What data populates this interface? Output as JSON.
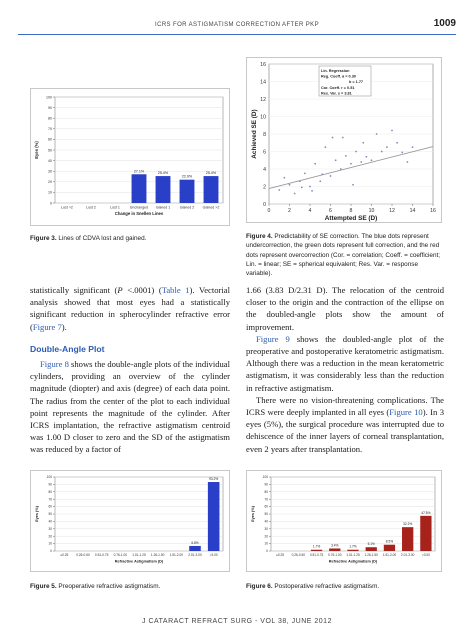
{
  "header": {
    "running_head": "ICRS FOR ASTIGMATISM CORRECTION AFTER PKP",
    "page_number": "1009"
  },
  "figure3": {
    "caption_label": "Figure 3.",
    "caption_text": "Lines of CDVA lost and gained.",
    "chart_data": {
      "type": "bar",
      "categories": [
        "Lost >2",
        "Lost 2",
        "Lost 1",
        "Unchanged",
        "Gained 1",
        "Gained 2",
        "Gained >2"
      ],
      "values": [
        0,
        0,
        0,
        27.1,
        25.4,
        22.0,
        25.4
      ],
      "value_labels": [
        "",
        "",
        "",
        "27.1%",
        "25.4%",
        "22.0%",
        "25.4%"
      ],
      "ylabel": "Eyes (%)",
      "xlabel": "Change in Snellen Lines",
      "ylim": [
        0,
        100
      ],
      "yticks": [
        "0",
        "10",
        "20",
        "30",
        "40",
        "50",
        "60",
        "70",
        "80",
        "90",
        "100"
      ],
      "bar_color": "#2a3fc8"
    }
  },
  "figure4": {
    "caption_label": "Figure 4.",
    "caption_text": "Predictability of SE correction. The blue dots represent undercorrection, the green dots represent full correction, and the red dots represent overcorrection (Cor. = correlation; Coeff. = coefficient; Lin. = linear; SE = spherical equivalent; Res. Var. = response variable).",
    "chart_data": {
      "type": "scatter",
      "xlabel": "Attempted SE (D)",
      "ylabel": "Achieved SE (D)",
      "xlim": [
        0,
        16
      ],
      "ylim": [
        0,
        16
      ],
      "xticks": [
        "0",
        "2",
        "4",
        "6",
        "8",
        "10",
        "12",
        "14",
        "16"
      ],
      "yticks": [
        "0",
        "2",
        "4",
        "6",
        "8",
        "10",
        "12",
        "14",
        "16"
      ],
      "legend_lines": [
        "Lin. Regression",
        "Reg. Coeff.  a = 0.30",
        "b = 1.77",
        "Cor. Coeff.  r = 0.51",
        "Res. Var.   s = 3.81"
      ],
      "regression": {
        "a": 0.3,
        "b": 1.77,
        "x_range": [
          0,
          16
        ]
      },
      "points": [
        {
          "x": 1.0,
          "y": 1.6
        },
        {
          "x": 1.5,
          "y": 3.0
        },
        {
          "x": 2.0,
          "y": 2.2
        },
        {
          "x": 2.5,
          "y": 1.2
        },
        {
          "x": 3.0,
          "y": 2.6
        },
        {
          "x": 3.2,
          "y": 1.9
        },
        {
          "x": 3.5,
          "y": 3.5
        },
        {
          "x": 4.0,
          "y": 2.0
        },
        {
          "x": 4.2,
          "y": 1.5
        },
        {
          "x": 4.5,
          "y": 4.6
        },
        {
          "x": 5.0,
          "y": 2.6
        },
        {
          "x": 5.2,
          "y": 3.4
        },
        {
          "x": 5.5,
          "y": 6.5
        },
        {
          "x": 6.0,
          "y": 3.2
        },
        {
          "x": 6.2,
          "y": 7.6
        },
        {
          "x": 6.5,
          "y": 5.0
        },
        {
          "x": 7.0,
          "y": 4.0
        },
        {
          "x": 7.2,
          "y": 7.6
        },
        {
          "x": 7.5,
          "y": 5.5
        },
        {
          "x": 8.0,
          "y": 4.6
        },
        {
          "x": 8.2,
          "y": 2.2
        },
        {
          "x": 8.5,
          "y": 6.0
        },
        {
          "x": 9.0,
          "y": 4.8
        },
        {
          "x": 9.2,
          "y": 7.0
        },
        {
          "x": 9.5,
          "y": 5.4
        },
        {
          "x": 10.0,
          "y": 5.0
        },
        {
          "x": 10.5,
          "y": 8.0
        },
        {
          "x": 11.0,
          "y": 6.0
        },
        {
          "x": 11.5,
          "y": 6.5
        },
        {
          "x": 12.0,
          "y": 8.4
        },
        {
          "x": 12.5,
          "y": 7.0
        },
        {
          "x": 13.0,
          "y": 5.9
        },
        {
          "x": 13.5,
          "y": 4.8
        },
        {
          "x": 14.0,
          "y": 6.5
        }
      ],
      "point_color": "#7a8fb8",
      "line_color": "#999999"
    }
  },
  "left_column": {
    "para1": {
      "t1": "statistically significant (",
      "t1_italic": "P",
      "t2": " <.0001) (",
      "link_table1": "Table 1",
      "t3": "). Vectorial analysis showed that most eyes had a statistically significant reduction in spherocylinder refractive error (",
      "link_fig7": "Figure 7",
      "t4": ")."
    },
    "section_title": "Double-Angle Plot",
    "para2": {
      "link_fig8": "Figure 8",
      "t1": " shows the double-angle plots of the individual cylinders, providing an overview of the cylinder magnitude (diopter) and axis (degree) of each data point. The radius from the center of the plot to each individual point represents the magnitude of the cylinder. After ICRS implantation, the refractive astigmatism centroid was 1.00 D closer to zero and the SD of the astigmatism was reduced by a factor of"
    }
  },
  "right_column": {
    "para1": "1.66 (3.83 D/2.31 D). The relocation of the centroid closer to the origin and the contraction of the ellipse on the doubled-angle plots show the amount of improvement.",
    "para2": {
      "link_fig9": "Figure 9",
      "t1": " shows the doubled-angle plot of the preoperative and postoperative keratometric astigmatism. Although there was a reduction in the mean keratometric astigmatism, it was considerably less than the reduction in refractive astigmatism."
    },
    "para3": {
      "t1": "There were no vision-threatening complications. The ICRS were deeply implanted in all eyes (",
      "link_fig10": "Figure 10",
      "t2": "). In 3 eyes (5%), the surgical procedure was interrupted due to dehiscence of the inner layers of corneal transplantation, even 2 years after transplantation."
    }
  },
  "figure5": {
    "caption_label": "Figure 5.",
    "caption_text": "Preoperative refractive astigmatism.",
    "chart_data": {
      "type": "bar",
      "categories": [
        "≤0.25",
        "0.26-0.50",
        "0.51-0.75",
        "0.76-1.00",
        "1.01-1.25",
        "1.26-1.50",
        "1.51-2.00",
        "2.01-3.00",
        ">3.00"
      ],
      "values": [
        0,
        0,
        0,
        0,
        0,
        0,
        0,
        6.8,
        93.2
      ],
      "value_labels": [
        "",
        "",
        "",
        "",
        "",
        "",
        "",
        "6.8%",
        "93.2%"
      ],
      "ylabel": "Eyes (%)",
      "xlabel": "Refractive Astigmatism (D)",
      "ylim": [
        0,
        100
      ],
      "yticks": [
        "0",
        "10",
        "20",
        "30",
        "40",
        "50",
        "60",
        "70",
        "80",
        "90",
        "100"
      ],
      "bar_color": "#2a3fc8"
    }
  },
  "figure6": {
    "caption_label": "Figure 6.",
    "caption_text": "Postoperative refractive astigmatism.",
    "chart_data": {
      "type": "bar",
      "categories": [
        "≤0.25",
        "0.26-0.50",
        "0.51-0.75",
        "0.76-1.00",
        "1.01-1.25",
        "1.26-1.50",
        "1.51-2.00",
        "2.01-3.00",
        ">3.00"
      ],
      "values": [
        0,
        0,
        1.7,
        3.4,
        1.7,
        5.1,
        8.5,
        32.2,
        47.5
      ],
      "value_labels": [
        "",
        "",
        "1.7%",
        "3.4%",
        "1.7%",
        "5.1%",
        "8.5%",
        "32.2%",
        "47.5%"
      ],
      "ylabel": "Eyes (%)",
      "xlabel": "Refractive Astigmatism (D)",
      "ylim": [
        0,
        100
      ],
      "yticks": [
        "0",
        "10",
        "20",
        "30",
        "40",
        "50",
        "60",
        "70",
        "80",
        "90",
        "100"
      ],
      "bar_color": "#a8221c"
    }
  },
  "footer": {
    "text": "J CATARACT REFRACT SURG - VOL 38, JUNE 2012"
  }
}
